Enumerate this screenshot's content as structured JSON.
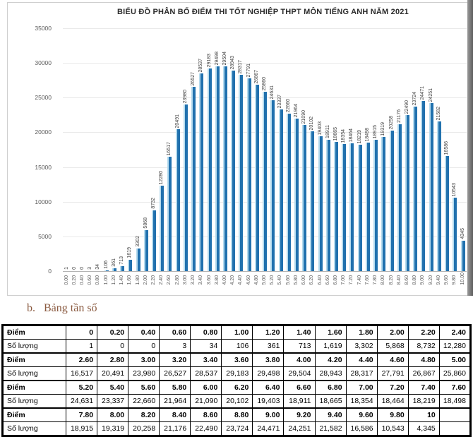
{
  "chart_data": {
    "type": "bar",
    "title": "BIỂU ĐỒ PHÂN BỐ ĐIỂM THI TỐT NGHIỆP THPT MÔN TIẾNG ANH NĂM 2021",
    "xlabel": "",
    "ylabel": "",
    "categories": [
      "0.00",
      "0.20",
      "0.40",
      "0.60",
      "0.80",
      "1.00",
      "1.20",
      "1.40",
      "1.60",
      "1.80",
      "2.00",
      "2.20",
      "2.40",
      "2.60",
      "2.80",
      "3.00",
      "3.20",
      "3.40",
      "3.60",
      "3.80",
      "4.00",
      "4.20",
      "4.40",
      "4.60",
      "4.80",
      "5.00",
      "5.20",
      "5.40",
      "5.60",
      "5.80",
      "6.00",
      "6.20",
      "6.40",
      "6.60",
      "6.80",
      "7.00",
      "7.20",
      "7.40",
      "7.60",
      "7.80",
      "8.00",
      "8.20",
      "8.40",
      "8.60",
      "8.80",
      "9.00",
      "9.20",
      "9.40",
      "9.60",
      "9.80",
      "10.00"
    ],
    "values": [
      1,
      0,
      0,
      3,
      34,
      106,
      361,
      713,
      1619,
      3302,
      5868,
      8732,
      12280,
      16517,
      20491,
      23980,
      26527,
      28537,
      29183,
      29498,
      29504,
      28943,
      28317,
      27791,
      26867,
      25860,
      24631,
      23337,
      22660,
      21964,
      21090,
      20102,
      19403,
      18911,
      18665,
      18354,
      18464,
      18219,
      18498,
      18915,
      19319,
      20258,
      21176,
      22490,
      23724,
      24471,
      24251,
      21582,
      16586,
      10543,
      4345
    ],
    "ylim": [
      0,
      35000
    ],
    "yticks": [
      0,
      5000,
      10000,
      15000,
      20000,
      25000,
      30000,
      35000
    ],
    "grid": true,
    "data_labels": true,
    "legend": "none",
    "bar_color": "#2171ae",
    "bar_highlight": "#b5dbee",
    "value_label_color": "#404040"
  },
  "section": {
    "marker": "b.",
    "heading": "Bảng tần số",
    "heading_color": "#8a5a40"
  },
  "table": {
    "rows": [
      {
        "label": "Điểm",
        "bold": true,
        "cells": [
          "0",
          "0.20",
          "0.40",
          "0.60",
          "0.80",
          "1.00",
          "1.20",
          "1.40",
          "1.60",
          "1.80",
          "2.00",
          "2.20",
          "2.40"
        ]
      },
      {
        "label": "Số lượng",
        "bold": false,
        "cells": [
          "1",
          "0",
          "0",
          "3",
          "34",
          "106",
          "361",
          "713",
          "1,619",
          "3,302",
          "5,868",
          "8,732",
          "12,280"
        ]
      },
      {
        "label": "Điểm",
        "bold": true,
        "cells": [
          "2.60",
          "2.80",
          "3.00",
          "3.20",
          "3.40",
          "3.60",
          "3.80",
          "4.00",
          "4.20",
          "4.40",
          "4.60",
          "4.80",
          "5.00"
        ]
      },
      {
        "label": "Số lượng",
        "bold": false,
        "cells": [
          "16,517",
          "20,491",
          "23,980",
          "26,527",
          "28,537",
          "29,183",
          "29,498",
          "29,504",
          "28,943",
          "28,317",
          "27,791",
          "26,867",
          "25,860"
        ]
      },
      {
        "label": "Điểm",
        "bold": true,
        "cells": [
          "5.20",
          "5.40",
          "5.60",
          "5.80",
          "6.00",
          "6.20",
          "6.40",
          "6.60",
          "6.80",
          "7.00",
          "7.20",
          "7.40",
          "7.60"
        ]
      },
      {
        "label": "Số lượng",
        "bold": false,
        "cells": [
          "24,631",
          "23,337",
          "22,660",
          "21,964",
          "21,090",
          "20,102",
          "19,403",
          "18,911",
          "18,665",
          "18,354",
          "18,464",
          "18,219",
          "18,498"
        ]
      },
      {
        "label": "Điểm",
        "bold": true,
        "cells": [
          "7.80",
          "8.00",
          "8.20",
          "8.40",
          "8.60",
          "8.80",
          "9.00",
          "9.20",
          "9.40",
          "9.60",
          "9.80",
          "10",
          ""
        ]
      },
      {
        "label": "Số lượng",
        "bold": false,
        "cells": [
          "18,915",
          "19,319",
          "20,258",
          "21,176",
          "22,490",
          "23,724",
          "24,471",
          "24,251",
          "21,582",
          "16,586",
          "10,543",
          "4,345",
          ""
        ]
      }
    ]
  }
}
